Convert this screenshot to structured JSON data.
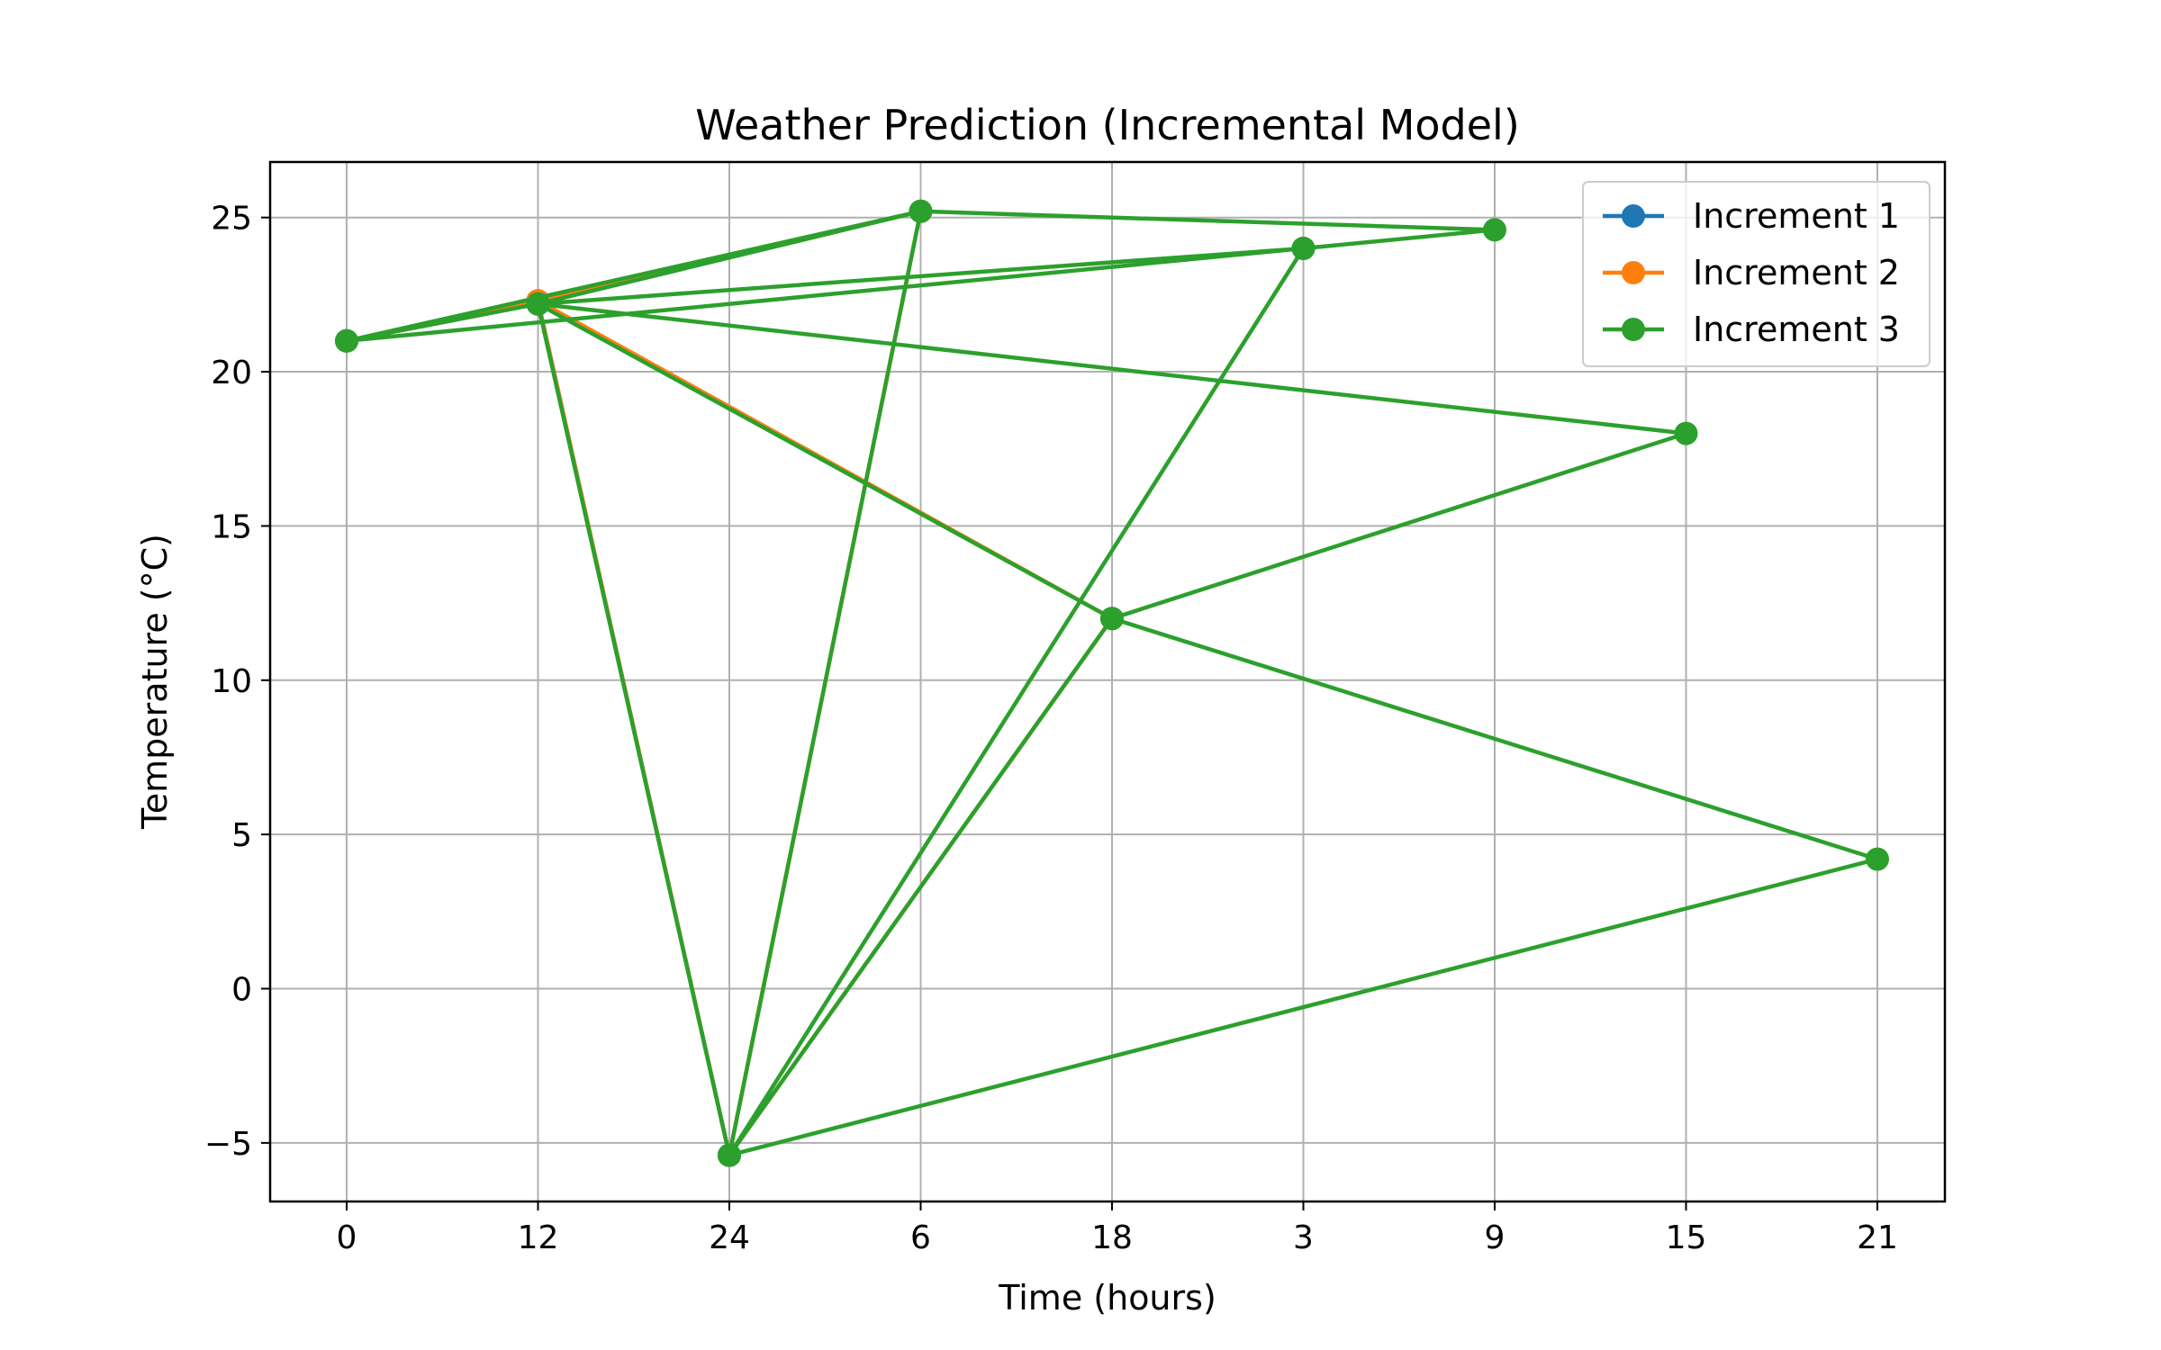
{
  "chart_data": {
    "type": "line",
    "title": "Weather Prediction (Incremental Model)",
    "xlabel": "Time (hours)",
    "ylabel": "Temperature (°C)",
    "categories": [
      "0",
      "12",
      "24",
      "6",
      "18",
      "3",
      "9",
      "15",
      "21"
    ],
    "ylim": [
      -6.9,
      26.8
    ],
    "yticks": [
      -5,
      0,
      5,
      10,
      15,
      20,
      25
    ],
    "ytick_labels": [
      "−5",
      "0",
      "5",
      "10",
      "15",
      "20",
      "25"
    ],
    "grid": true,
    "legend_position": "top-right",
    "series": [
      {
        "name": "Increment 1",
        "color": "#1f77b4",
        "x": [
          "0",
          "12",
          "24"
        ],
        "values": [
          21.0,
          22.3,
          -5.4
        ]
      },
      {
        "name": "Increment 2",
        "color": "#ff7f0e",
        "x": [
          "0",
          "12",
          "24",
          "6",
          "12",
          "18",
          "24"
        ],
        "values": [
          21.0,
          22.3,
          -5.4,
          25.2,
          22.3,
          12.0,
          -5.4
        ]
      },
      {
        "name": "Increment 3",
        "color": "#2ca02c",
        "x": [
          "0",
          "12",
          "24",
          "6",
          "12",
          "18",
          "24",
          "3",
          "0",
          "6",
          "9",
          "3",
          "12",
          "15",
          "18",
          "21",
          "24"
        ],
        "values": [
          21.0,
          22.2,
          -5.4,
          25.2,
          22.2,
          12.0,
          -5.4,
          24.0,
          21.0,
          25.2,
          24.6,
          24.0,
          22.2,
          18.0,
          12.0,
          4.2,
          -5.4
        ]
      }
    ]
  }
}
